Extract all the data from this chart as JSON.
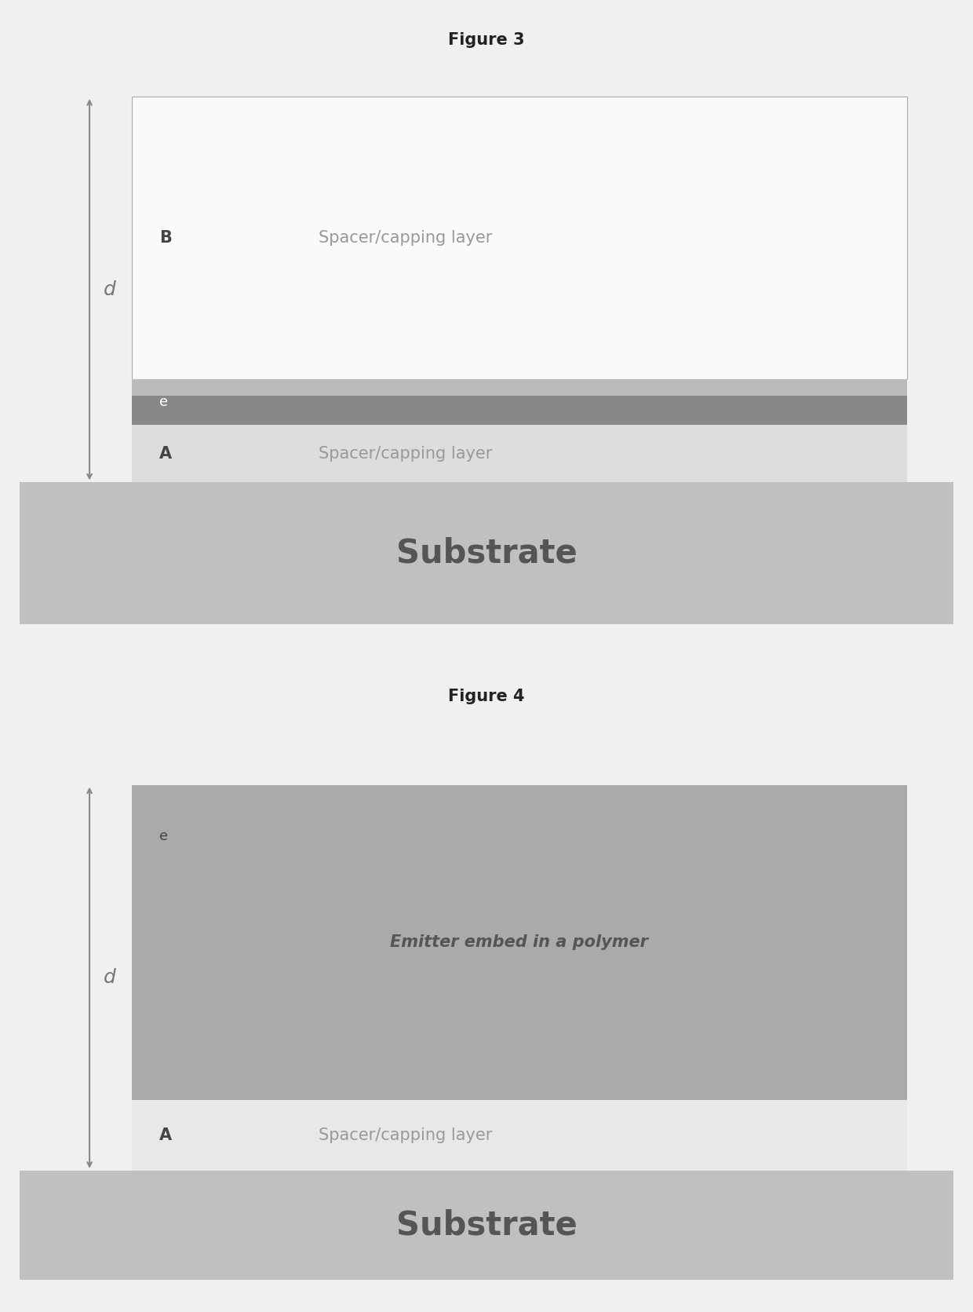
{
  "fig_title_1": "Figure 3",
  "fig_title_2": "Figure 4",
  "title_fontsize": 15,
  "title_fontweight": "bold",
  "bg_color": "#f0f0f0",
  "fig3": {
    "substrate_color": "#c0c0c0",
    "substrate_label": "Substrate",
    "substrate_label_fontsize": 30,
    "substrate_label_fontweight": "bold",
    "substrate_label_color": "#555555",
    "layer_B_color": "#fafafa",
    "layer_B_border_color": "#aaaaaa",
    "layer_B_label": "B",
    "layer_B_text": "Spacer/capping layer",
    "layer_B_text_color": "#999999",
    "layer_e_color": "#888888",
    "layer_e_top_color": "#bbbbbb",
    "layer_e_label": "e",
    "layer_e_text_color": "#ffffff",
    "layer_A_color": "#dddddd",
    "layer_A_label": "A",
    "layer_A_text": "Spacer/capping layer",
    "layer_A_text_color": "#999999",
    "text_fontsize": 15,
    "label_fontsize": 13,
    "d_label": "d",
    "d_label_fontsize": 18,
    "d_label_style": "italic",
    "d_label_color": "#777777",
    "arrow_color": "#888888"
  },
  "fig4": {
    "substrate_color": "#c0c0c0",
    "substrate_label": "Substrate",
    "substrate_label_fontsize": 30,
    "substrate_label_fontweight": "bold",
    "substrate_label_color": "#555555",
    "layer_e_color": "#aaaaaa",
    "layer_e_label": "e",
    "layer_e_text": "Emitter embed in a polymer",
    "layer_e_text_color": "#555555",
    "layer_e_text_style": "italic",
    "layer_A_color": "#e8e8e8",
    "layer_A_label": "A",
    "layer_A_text": "Spacer/capping layer",
    "layer_A_text_color": "#999999",
    "text_fontsize": 15,
    "label_fontsize": 13,
    "d_label": "d",
    "d_label_fontsize": 18,
    "d_label_style": "italic",
    "d_label_color": "#777777",
    "arrow_color": "#888888"
  }
}
